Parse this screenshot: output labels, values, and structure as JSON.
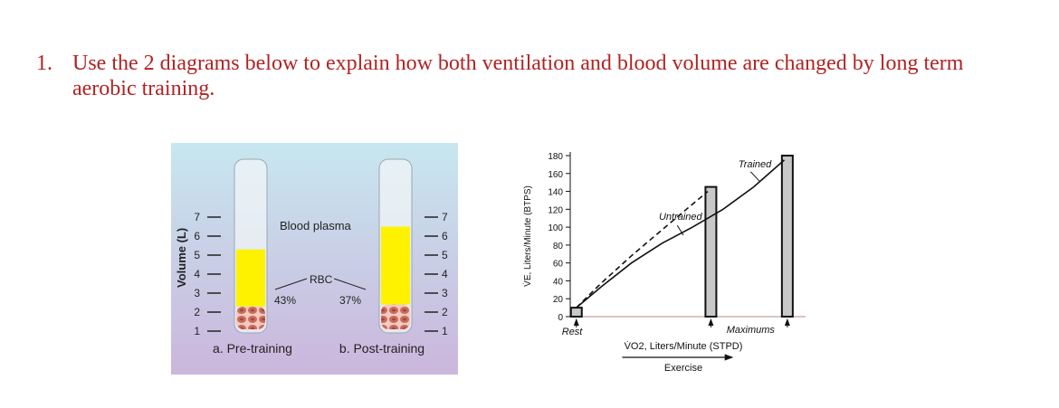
{
  "question": {
    "number": "1.",
    "text": "Use the 2 diagrams below to explain how both ventilation and blood volume are changed by long term aerobic training."
  },
  "blood_diagram": {
    "y_axis_label": "Volume (L)",
    "ticks": [
      "1",
      "2",
      "3",
      "4",
      "5",
      "6",
      "7"
    ],
    "plasma_label": "Blood plasma",
    "rbc_label": "RBC",
    "tubes": [
      {
        "caption": "a. Pre-training",
        "hematocrit_label": "43%",
        "total_volume_l": 5.3,
        "rbc_volume_l": 2.3
      },
      {
        "caption": "b. Post-training",
        "hematocrit_label": "37%",
        "total_volume_l": 6.5,
        "rbc_volume_l": 2.4
      }
    ],
    "colors": {
      "background_top": "#c7e7f0",
      "background_bottom": "#cbb6dc",
      "plasma": "#fff200",
      "rbc": "#c96b5c"
    }
  },
  "chart_data": {
    "type": "line",
    "ylabel": "V̇E, Liters/Minute (BTPS)",
    "xlabel": "V̇O2, Liters/Minute (STPD)",
    "x_arrow_label": "Exercise",
    "yticks": [
      "0",
      "20",
      "40",
      "60",
      "80",
      "100",
      "120",
      "140",
      "160",
      "180"
    ],
    "ylim": [
      0,
      180
    ],
    "x_labels": {
      "rest": "Rest",
      "max": "Maximums"
    },
    "series": [
      {
        "name": "Untrained",
        "style": "dashed",
        "points": [
          [
            0.1,
            10
          ],
          [
            0.5,
            37
          ],
          [
            1.0,
            68
          ],
          [
            1.5,
            97
          ],
          [
            1.9,
            120
          ],
          [
            2.25,
            140
          ]
        ]
      },
      {
        "name": "Trained",
        "style": "solid",
        "points": [
          [
            0.1,
            10
          ],
          [
            0.5,
            33
          ],
          [
            1.0,
            60
          ],
          [
            1.5,
            82
          ],
          [
            2.0,
            100
          ],
          [
            2.5,
            120
          ],
          [
            3.0,
            145
          ],
          [
            3.5,
            175
          ]
        ]
      }
    ],
    "bars": [
      {
        "label": "Rest",
        "x": 0.1,
        "value": 10
      },
      {
        "label": "Untrained max",
        "x": 2.3,
        "value": 145
      },
      {
        "label": "Trained max",
        "x": 3.55,
        "value": 180
      }
    ],
    "xlim": [
      0,
      3.7
    ]
  }
}
